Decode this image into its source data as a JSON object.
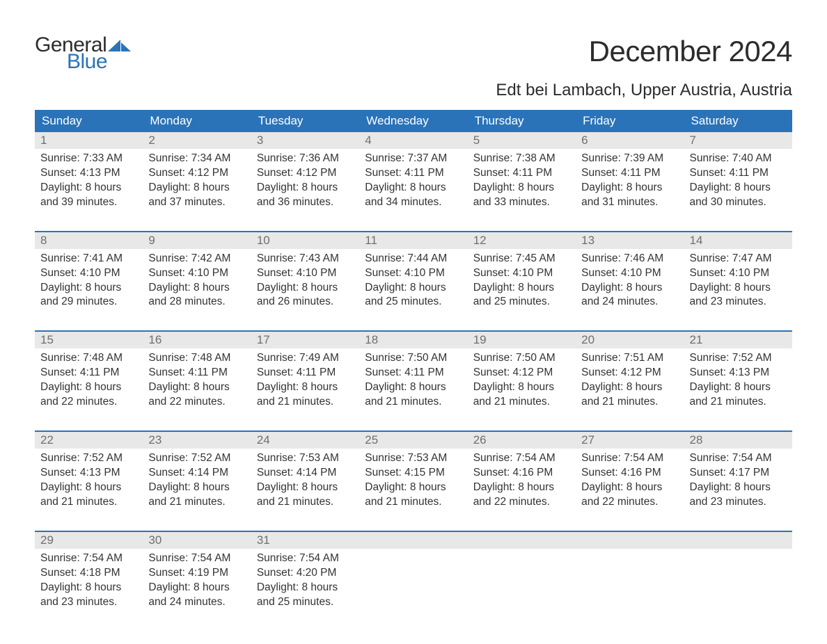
{
  "logo": {
    "text_general": "General",
    "text_blue": "Blue",
    "mark_color": "#2a73b8"
  },
  "header": {
    "month_title": "December 2024",
    "location": "Edt bei Lambach, Upper Austria, Austria"
  },
  "colors": {
    "header_bg": "#2a73b8",
    "header_text": "#ffffff",
    "daynum_bg": "#e8e8e8",
    "daynum_text": "#6f6f6f",
    "body_text": "#333333",
    "rule": "#2a73b8",
    "page_bg": "#ffffff"
  },
  "typography": {
    "month_title_fontsize": 42,
    "location_fontsize": 24,
    "day_header_fontsize": 17,
    "daynum_fontsize": 17,
    "detail_fontsize": 15.5
  },
  "day_headers": [
    "Sunday",
    "Monday",
    "Tuesday",
    "Wednesday",
    "Thursday",
    "Friday",
    "Saturday"
  ],
  "weeks": [
    [
      {
        "num": "1",
        "sunrise": "7:33 AM",
        "sunset": "4:13 PM",
        "daylight_hours": "8",
        "daylight_minutes": "39"
      },
      {
        "num": "2",
        "sunrise": "7:34 AM",
        "sunset": "4:12 PM",
        "daylight_hours": "8",
        "daylight_minutes": "37"
      },
      {
        "num": "3",
        "sunrise": "7:36 AM",
        "sunset": "4:12 PM",
        "daylight_hours": "8",
        "daylight_minutes": "36"
      },
      {
        "num": "4",
        "sunrise": "7:37 AM",
        "sunset": "4:11 PM",
        "daylight_hours": "8",
        "daylight_minutes": "34"
      },
      {
        "num": "5",
        "sunrise": "7:38 AM",
        "sunset": "4:11 PM",
        "daylight_hours": "8",
        "daylight_minutes": "33"
      },
      {
        "num": "6",
        "sunrise": "7:39 AM",
        "sunset": "4:11 PM",
        "daylight_hours": "8",
        "daylight_minutes": "31"
      },
      {
        "num": "7",
        "sunrise": "7:40 AM",
        "sunset": "4:11 PM",
        "daylight_hours": "8",
        "daylight_minutes": "30"
      }
    ],
    [
      {
        "num": "8",
        "sunrise": "7:41 AM",
        "sunset": "4:10 PM",
        "daylight_hours": "8",
        "daylight_minutes": "29"
      },
      {
        "num": "9",
        "sunrise": "7:42 AM",
        "sunset": "4:10 PM",
        "daylight_hours": "8",
        "daylight_minutes": "28"
      },
      {
        "num": "10",
        "sunrise": "7:43 AM",
        "sunset": "4:10 PM",
        "daylight_hours": "8",
        "daylight_minutes": "26"
      },
      {
        "num": "11",
        "sunrise": "7:44 AM",
        "sunset": "4:10 PM",
        "daylight_hours": "8",
        "daylight_minutes": "25"
      },
      {
        "num": "12",
        "sunrise": "7:45 AM",
        "sunset": "4:10 PM",
        "daylight_hours": "8",
        "daylight_minutes": "25"
      },
      {
        "num": "13",
        "sunrise": "7:46 AM",
        "sunset": "4:10 PM",
        "daylight_hours": "8",
        "daylight_minutes": "24"
      },
      {
        "num": "14",
        "sunrise": "7:47 AM",
        "sunset": "4:10 PM",
        "daylight_hours": "8",
        "daylight_minutes": "23"
      }
    ],
    [
      {
        "num": "15",
        "sunrise": "7:48 AM",
        "sunset": "4:11 PM",
        "daylight_hours": "8",
        "daylight_minutes": "22"
      },
      {
        "num": "16",
        "sunrise": "7:48 AM",
        "sunset": "4:11 PM",
        "daylight_hours": "8",
        "daylight_minutes": "22"
      },
      {
        "num": "17",
        "sunrise": "7:49 AM",
        "sunset": "4:11 PM",
        "daylight_hours": "8",
        "daylight_minutes": "21"
      },
      {
        "num": "18",
        "sunrise": "7:50 AM",
        "sunset": "4:11 PM",
        "daylight_hours": "8",
        "daylight_minutes": "21"
      },
      {
        "num": "19",
        "sunrise": "7:50 AM",
        "sunset": "4:12 PM",
        "daylight_hours": "8",
        "daylight_minutes": "21"
      },
      {
        "num": "20",
        "sunrise": "7:51 AM",
        "sunset": "4:12 PM",
        "daylight_hours": "8",
        "daylight_minutes": "21"
      },
      {
        "num": "21",
        "sunrise": "7:52 AM",
        "sunset": "4:13 PM",
        "daylight_hours": "8",
        "daylight_minutes": "21"
      }
    ],
    [
      {
        "num": "22",
        "sunrise": "7:52 AM",
        "sunset": "4:13 PM",
        "daylight_hours": "8",
        "daylight_minutes": "21"
      },
      {
        "num": "23",
        "sunrise": "7:52 AM",
        "sunset": "4:14 PM",
        "daylight_hours": "8",
        "daylight_minutes": "21"
      },
      {
        "num": "24",
        "sunrise": "7:53 AM",
        "sunset": "4:14 PM",
        "daylight_hours": "8",
        "daylight_minutes": "21"
      },
      {
        "num": "25",
        "sunrise": "7:53 AM",
        "sunset": "4:15 PM",
        "daylight_hours": "8",
        "daylight_minutes": "21"
      },
      {
        "num": "26",
        "sunrise": "7:54 AM",
        "sunset": "4:16 PM",
        "daylight_hours": "8",
        "daylight_minutes": "22"
      },
      {
        "num": "27",
        "sunrise": "7:54 AM",
        "sunset": "4:16 PM",
        "daylight_hours": "8",
        "daylight_minutes": "22"
      },
      {
        "num": "28",
        "sunrise": "7:54 AM",
        "sunset": "4:17 PM",
        "daylight_hours": "8",
        "daylight_minutes": "23"
      }
    ],
    [
      {
        "num": "29",
        "sunrise": "7:54 AM",
        "sunset": "4:18 PM",
        "daylight_hours": "8",
        "daylight_minutes": "23"
      },
      {
        "num": "30",
        "sunrise": "7:54 AM",
        "sunset": "4:19 PM",
        "daylight_hours": "8",
        "daylight_minutes": "24"
      },
      {
        "num": "31",
        "sunrise": "7:54 AM",
        "sunset": "4:20 PM",
        "daylight_hours": "8",
        "daylight_minutes": "25"
      },
      null,
      null,
      null,
      null
    ]
  ],
  "labels": {
    "sunrise_prefix": "Sunrise: ",
    "sunset_prefix": "Sunset: ",
    "daylight_prefix": "Daylight: ",
    "hours_word": " hours",
    "and_word": "and ",
    "minutes_word": " minutes."
  }
}
